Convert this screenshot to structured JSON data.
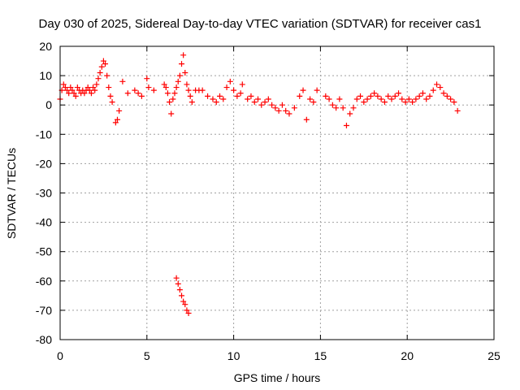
{
  "chart_data": {
    "type": "scatter",
    "title": "Day 030 of 2025, Sidereal Day-to-day VTEC variation (SDTVAR) for receiver cas1",
    "xlabel": "GPS time / hours",
    "ylabel": "SDTVAR / TECUs",
    "xlim": [
      0,
      25
    ],
    "ylim": [
      -80,
      20
    ],
    "xticks": [
      0,
      5,
      10,
      15,
      20,
      25
    ],
    "yticks": [
      20,
      10,
      0,
      -10,
      -20,
      -30,
      -40,
      -50,
      -60,
      -70,
      -80
    ],
    "xtick_labels": [
      "0",
      "5",
      "10",
      "15",
      "20",
      "25"
    ],
    "ytick_labels": [
      "20",
      "10",
      "0",
      "-10",
      "-20",
      "-30",
      "-40",
      "-50",
      "-60",
      "-70",
      "-80"
    ],
    "grid": true,
    "marker": "+",
    "marker_color": "#ff0000",
    "series": [
      {
        "name": "SDTVAR",
        "x": [
          0.0,
          0.1,
          0.2,
          0.3,
          0.4,
          0.5,
          0.6,
          0.7,
          0.8,
          0.9,
          1.0,
          1.1,
          1.2,
          1.3,
          1.4,
          1.5,
          1.6,
          1.7,
          1.8,
          1.9,
          2.0,
          2.1,
          2.2,
          2.3,
          2.4,
          2.5,
          2.6,
          2.7,
          2.8,
          2.9,
          3.0,
          3.2,
          3.3,
          3.4,
          3.6,
          3.9,
          4.3,
          4.5,
          4.7,
          5.0,
          5.1,
          5.4,
          6.0,
          6.1,
          6.2,
          6.3,
          6.4,
          6.5,
          6.6,
          6.7,
          6.8,
          6.9,
          7.0,
          7.1,
          7.2,
          7.3,
          7.4,
          7.5,
          7.6,
          7.8,
          8.0,
          8.2,
          8.5,
          8.8,
          9.0,
          9.2,
          9.4,
          9.6,
          9.8,
          10.0,
          10.2,
          10.4,
          10.5,
          10.8,
          11.0,
          11.2,
          11.4,
          11.6,
          11.8,
          12.0,
          12.2,
          12.4,
          12.6,
          12.8,
          13.0,
          13.2,
          13.5,
          13.8,
          14.0,
          14.2,
          14.4,
          14.6,
          14.8,
          15.3,
          15.5,
          15.7,
          15.9,
          16.1,
          16.3,
          16.5,
          16.7,
          16.9,
          17.1,
          17.3,
          17.5,
          17.7,
          17.9,
          18.1,
          18.3,
          18.5,
          18.7,
          18.9,
          19.1,
          19.3,
          19.5,
          19.7,
          19.9,
          20.1,
          20.3,
          20.5,
          20.7,
          20.9,
          21.1,
          21.3,
          21.5,
          21.7,
          21.9,
          22.1,
          22.3,
          22.5,
          22.7,
          22.9,
          6.7,
          6.8,
          6.9,
          7.0,
          7.1,
          7.2,
          7.3,
          7.4
        ],
        "y": [
          2,
          5,
          7,
          6,
          5,
          4,
          6,
          5,
          4,
          3,
          6,
          5,
          4,
          5,
          4,
          5,
          6,
          5,
          4,
          6,
          5,
          7,
          9,
          11,
          13,
          15,
          14,
          10,
          6,
          3,
          1,
          -6,
          -5,
          -2,
          8,
          4,
          5,
          4,
          3,
          9,
          6,
          5,
          7,
          6,
          4,
          1,
          -3,
          2,
          4,
          6,
          8,
          10,
          14,
          17,
          11,
          7,
          5,
          3,
          1,
          5,
          5,
          5,
          3,
          2,
          1,
          3,
          2,
          6,
          8,
          5,
          3,
          4,
          7,
          2,
          3,
          1,
          2,
          0,
          1,
          2,
          0,
          -1,
          -2,
          0,
          -2,
          -3,
          -1,
          3,
          5,
          -5,
          2,
          1,
          5,
          3,
          2,
          0,
          -1,
          2,
          -1,
          -7,
          -3,
          -1,
          2,
          3,
          1,
          2,
          3,
          4,
          3,
          2,
          1,
          3,
          2,
          3,
          4,
          2,
          1,
          2,
          1,
          2,
          3,
          4,
          2,
          3,
          5,
          7,
          6,
          4,
          3,
          2,
          1,
          -2,
          -59,
          -61,
          -63,
          -65,
          -67,
          -68,
          -70,
          -71
        ]
      }
    ]
  }
}
